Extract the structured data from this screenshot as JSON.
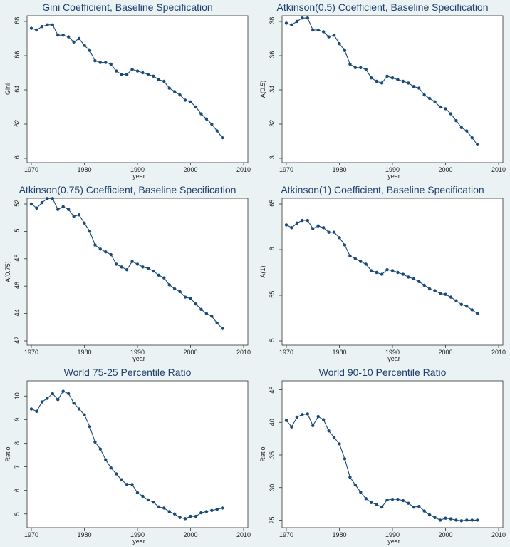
{
  "chart_data": [
    {
      "type": "line",
      "title": "Gini Coefficient, Baseline Specification",
      "xlabel": "year",
      "ylabel": "Gini",
      "xlim": [
        1970,
        2010
      ],
      "xticks": [
        1970,
        1980,
        1990,
        2000,
        2010
      ],
      "ylim": [
        0.6,
        0.68
      ],
      "yticks": [
        0.6,
        0.62,
        0.64,
        0.66,
        0.68
      ],
      "ytick_labels": [
        ".6",
        ".62",
        ".64",
        ".66",
        ".68"
      ],
      "x": [
        1970,
        1971,
        1972,
        1973,
        1974,
        1975,
        1976,
        1977,
        1978,
        1979,
        1980,
        1981,
        1982,
        1983,
        1984,
        1985,
        1986,
        1987,
        1988,
        1989,
        1990,
        1991,
        1992,
        1993,
        1994,
        1995,
        1996,
        1997,
        1998,
        1999,
        2000,
        2001,
        2002,
        2003,
        2004,
        2005,
        2006
      ],
      "values": [
        0.676,
        0.675,
        0.677,
        0.678,
        0.678,
        0.672,
        0.672,
        0.671,
        0.668,
        0.67,
        0.666,
        0.663,
        0.657,
        0.656,
        0.656,
        0.655,
        0.651,
        0.649,
        0.649,
        0.652,
        0.651,
        0.65,
        0.649,
        0.648,
        0.646,
        0.645,
        0.641,
        0.639,
        0.637,
        0.634,
        0.633,
        0.63,
        0.626,
        0.623,
        0.62,
        0.616,
        0.612
      ]
    },
    {
      "type": "line",
      "title": "Atkinson(0.5) Coefficient, Baseline Specification",
      "xlabel": "year",
      "ylabel": "A(0.5)",
      "xlim": [
        1970,
        2010
      ],
      "xticks": [
        1970,
        1980,
        1990,
        2000,
        2010
      ],
      "ylim": [
        0.3,
        0.38
      ],
      "yticks": [
        0.3,
        0.32,
        0.34,
        0.36,
        0.38
      ],
      "ytick_labels": [
        ".3",
        ".32",
        ".34",
        ".36",
        ".38"
      ],
      "x": [
        1970,
        1971,
        1972,
        1973,
        1974,
        1975,
        1976,
        1977,
        1978,
        1979,
        1980,
        1981,
        1982,
        1983,
        1984,
        1985,
        1986,
        1987,
        1988,
        1989,
        1990,
        1991,
        1992,
        1993,
        1994,
        1995,
        1996,
        1997,
        1998,
        1999,
        2000,
        2001,
        2002,
        2003,
        2004,
        2005,
        2006
      ],
      "values": [
        0.379,
        0.378,
        0.38,
        0.382,
        0.382,
        0.375,
        0.375,
        0.374,
        0.371,
        0.372,
        0.367,
        0.363,
        0.355,
        0.353,
        0.353,
        0.352,
        0.347,
        0.345,
        0.344,
        0.348,
        0.347,
        0.346,
        0.345,
        0.344,
        0.342,
        0.341,
        0.337,
        0.335,
        0.333,
        0.33,
        0.329,
        0.326,
        0.322,
        0.318,
        0.316,
        0.312,
        0.308
      ]
    },
    {
      "type": "line",
      "title": "Atkinson(0.75) Coefficient, Baseline Specification",
      "xlabel": "year",
      "ylabel": "A(0.75)",
      "xlim": [
        1970,
        2010
      ],
      "xticks": [
        1970,
        1980,
        1990,
        2000,
        2010
      ],
      "ylim": [
        0.42,
        0.52
      ],
      "yticks": [
        0.42,
        0.44,
        0.46,
        0.48,
        0.5,
        0.52
      ],
      "ytick_labels": [
        ".42",
        ".44",
        ".46",
        ".48",
        ".5",
        ".52"
      ],
      "x": [
        1970,
        1971,
        1972,
        1973,
        1974,
        1975,
        1976,
        1977,
        1978,
        1979,
        1980,
        1981,
        1982,
        1983,
        1984,
        1985,
        1986,
        1987,
        1988,
        1989,
        1990,
        1991,
        1992,
        1993,
        1994,
        1995,
        1996,
        1997,
        1998,
        1999,
        2000,
        2001,
        2002,
        2003,
        2004,
        2005,
        2006
      ],
      "values": [
        0.52,
        0.517,
        0.521,
        0.524,
        0.524,
        0.516,
        0.518,
        0.516,
        0.511,
        0.512,
        0.506,
        0.5,
        0.49,
        0.487,
        0.485,
        0.483,
        0.476,
        0.474,
        0.472,
        0.478,
        0.476,
        0.474,
        0.473,
        0.471,
        0.468,
        0.466,
        0.461,
        0.458,
        0.456,
        0.452,
        0.451,
        0.447,
        0.443,
        0.44,
        0.438,
        0.433,
        0.429
      ]
    },
    {
      "type": "line",
      "title": "Atkinson(1) Coefficient, Baseline Specification",
      "xlabel": "year",
      "ylabel": "A(1)",
      "xlim": [
        1970,
        2010
      ],
      "xticks": [
        1970,
        1980,
        1990,
        2000,
        2010
      ],
      "ylim": [
        0.5,
        0.65
      ],
      "yticks": [
        0.5,
        0.55,
        0.6,
        0.65
      ],
      "ytick_labels": [
        ".5",
        ".55",
        ".6",
        ".65"
      ],
      "x": [
        1970,
        1971,
        1972,
        1973,
        1974,
        1975,
        1976,
        1977,
        1978,
        1979,
        1980,
        1981,
        1982,
        1983,
        1984,
        1985,
        1986,
        1987,
        1988,
        1989,
        1990,
        1991,
        1992,
        1993,
        1994,
        1995,
        1996,
        1997,
        1998,
        1999,
        2000,
        2001,
        2002,
        2003,
        2004,
        2005,
        2006
      ],
      "values": [
        0.627,
        0.624,
        0.629,
        0.632,
        0.632,
        0.623,
        0.626,
        0.624,
        0.619,
        0.619,
        0.613,
        0.605,
        0.593,
        0.59,
        0.587,
        0.584,
        0.577,
        0.575,
        0.573,
        0.578,
        0.577,
        0.575,
        0.573,
        0.57,
        0.568,
        0.565,
        0.561,
        0.557,
        0.555,
        0.552,
        0.551,
        0.548,
        0.544,
        0.54,
        0.538,
        0.534,
        0.53
      ]
    },
    {
      "type": "line",
      "title": "World 75-25 Percentile Ratio",
      "xlabel": "year",
      "ylabel": "Ratio",
      "xlim": [
        1970,
        2010
      ],
      "xticks": [
        1970,
        1980,
        1990,
        2000,
        2010
      ],
      "ylim": [
        4.6,
        10.4
      ],
      "yticks": [
        5,
        6,
        7,
        8,
        9,
        10
      ],
      "ytick_labels": [
        "5",
        "6",
        "7",
        "8",
        "9",
        "10"
      ],
      "x": [
        1970,
        1971,
        1972,
        1973,
        1974,
        1975,
        1976,
        1977,
        1978,
        1979,
        1980,
        1981,
        1982,
        1983,
        1984,
        1985,
        1986,
        1987,
        1988,
        1989,
        1990,
        1991,
        1992,
        1993,
        1994,
        1995,
        1996,
        1997,
        1998,
        1999,
        2000,
        2001,
        2002,
        2003,
        2004,
        2005,
        2006
      ],
      "values": [
        9.45,
        9.35,
        9.75,
        9.9,
        10.1,
        9.85,
        10.2,
        10.1,
        9.7,
        9.45,
        9.2,
        8.7,
        8.05,
        7.75,
        7.3,
        6.95,
        6.7,
        6.45,
        6.25,
        6.25,
        5.9,
        5.75,
        5.6,
        5.5,
        5.3,
        5.25,
        5.1,
        5.0,
        4.85,
        4.8,
        4.9,
        4.9,
        5.05,
        5.1,
        5.15,
        5.2,
        5.25
      ]
    },
    {
      "type": "line",
      "title": "World 90-10 Percentile Ratio",
      "xlabel": "year",
      "ylabel": "Ratio",
      "xlim": [
        1970,
        2010
      ],
      "xticks": [
        1970,
        1980,
        1990,
        2000,
        2010
      ],
      "ylim": [
        24.5,
        45.5
      ],
      "yticks": [
        25,
        30,
        35,
        40,
        45
      ],
      "ytick_labels": [
        "25",
        "30",
        "35",
        "40",
        "45"
      ],
      "x": [
        1970,
        1971,
        1972,
        1973,
        1974,
        1975,
        1976,
        1977,
        1978,
        1979,
        1980,
        1981,
        1982,
        1983,
        1984,
        1985,
        1986,
        1987,
        1988,
        1989,
        1990,
        1991,
        1992,
        1993,
        1994,
        1995,
        1996,
        1997,
        1998,
        1999,
        2000,
        2001,
        2002,
        2003,
        2004,
        2005,
        2006
      ],
      "values": [
        40.3,
        39.3,
        40.8,
        41.2,
        41.3,
        39.5,
        40.9,
        40.4,
        38.7,
        37.7,
        36.7,
        34.4,
        31.6,
        30.4,
        29.3,
        28.3,
        27.7,
        27.4,
        27.0,
        28.1,
        28.2,
        28.2,
        28.0,
        27.6,
        27.0,
        27.1,
        26.4,
        25.8,
        25.4,
        25.0,
        25.3,
        25.2,
        25.0,
        24.9,
        25.0,
        25.0,
        25.0
      ]
    }
  ]
}
